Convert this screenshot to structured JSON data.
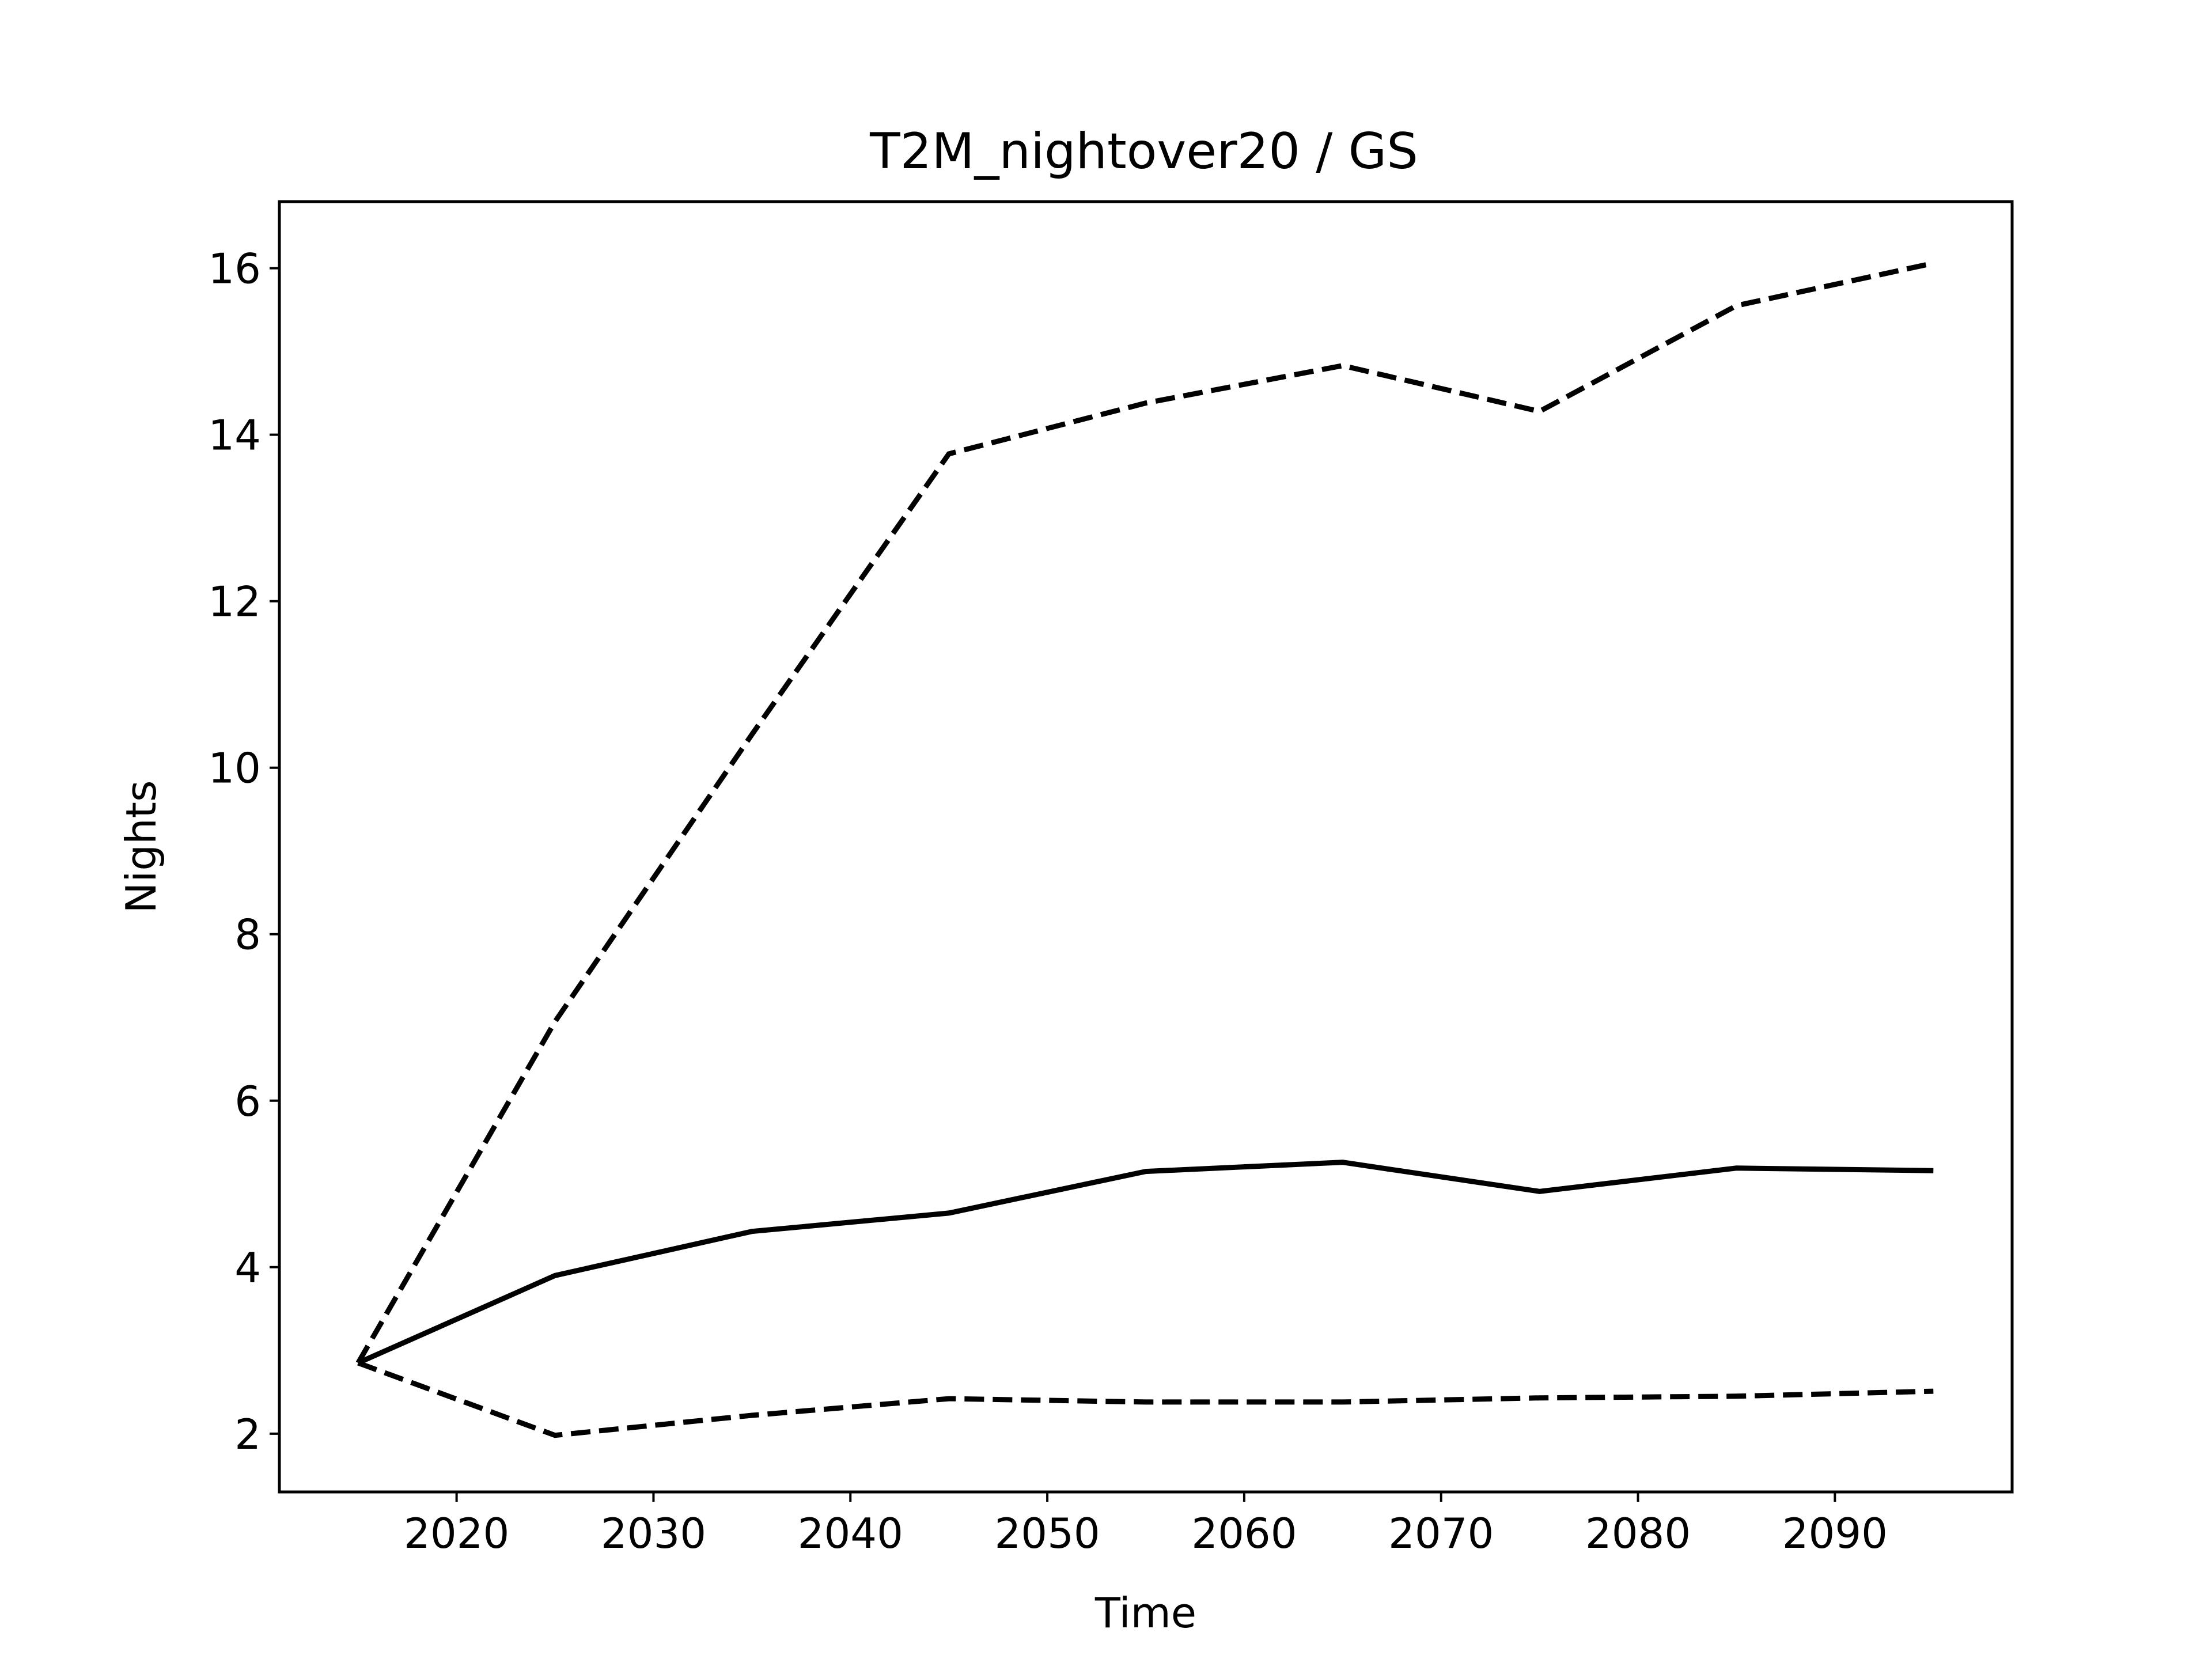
{
  "chart_data": {
    "type": "line",
    "title": "T2M_nightover20 / GS",
    "xlabel": "Time",
    "ylabel": "Nights",
    "x": [
      2015,
      2025,
      2035,
      2045,
      2055,
      2065,
      2075,
      2085,
      2095
    ],
    "xlim": [
      2011,
      2099
    ],
    "ylim": [
      1.3,
      16.8
    ],
    "xticks": [
      2020,
      2030,
      2040,
      2050,
      2060,
      2070,
      2080,
      2090
    ],
    "yticks": [
      2,
      4,
      6,
      8,
      10,
      12,
      14,
      16
    ],
    "grid": false,
    "legend": "none",
    "series": [
      {
        "style": "solid",
        "color": "#000000",
        "values": [
          2.85,
          3.9,
          4.43,
          4.65,
          5.15,
          5.26,
          4.91,
          5.19,
          5.16
        ]
      },
      {
        "style": "dashed",
        "color": "#000000",
        "values": [
          2.85,
          6.95,
          10.4,
          13.77,
          14.38,
          14.83,
          14.28,
          15.55,
          16.06
        ]
      },
      {
        "style": "dashed",
        "color": "#000000",
        "values": [
          2.85,
          1.98,
          2.22,
          2.42,
          2.38,
          2.38,
          2.43,
          2.45,
          2.51
        ]
      }
    ]
  }
}
